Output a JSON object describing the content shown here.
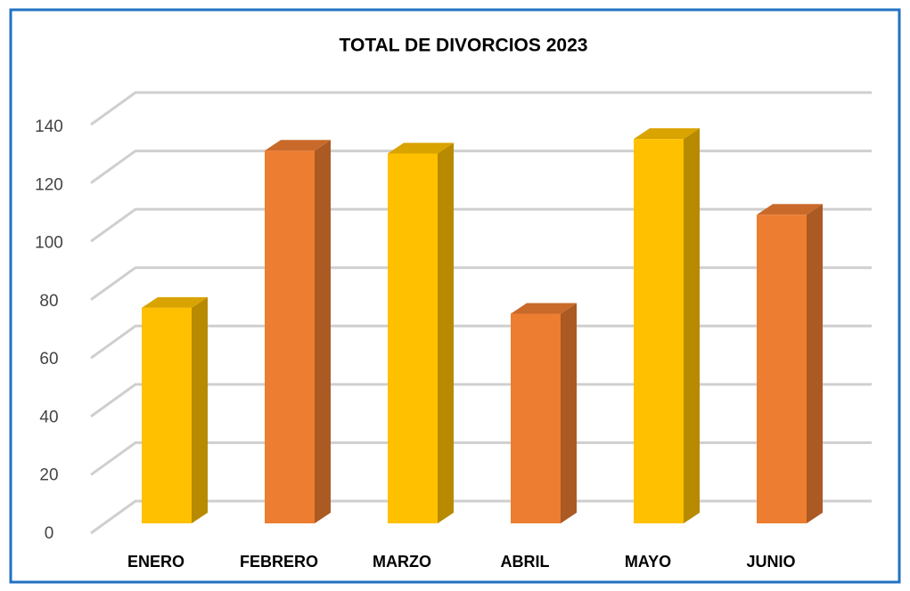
{
  "chart_data": {
    "type": "bar3d",
    "title": "TOTAL DE DIVORCIOS 2023",
    "categories": [
      "ENERO",
      "FEBRERO",
      "MARZO",
      "ABRIL",
      "MAYO",
      "JUNIO"
    ],
    "values": [
      74,
      128,
      127,
      72,
      132,
      106
    ],
    "colors": [
      "#FFC000",
      "#ED7D31",
      "#FFC000",
      "#ED7D31",
      "#FFC000",
      "#ED7D31"
    ],
    "ylim": [
      0,
      140
    ],
    "yticks": [
      0,
      20,
      40,
      60,
      80,
      100,
      120,
      140
    ],
    "grid": true
  }
}
